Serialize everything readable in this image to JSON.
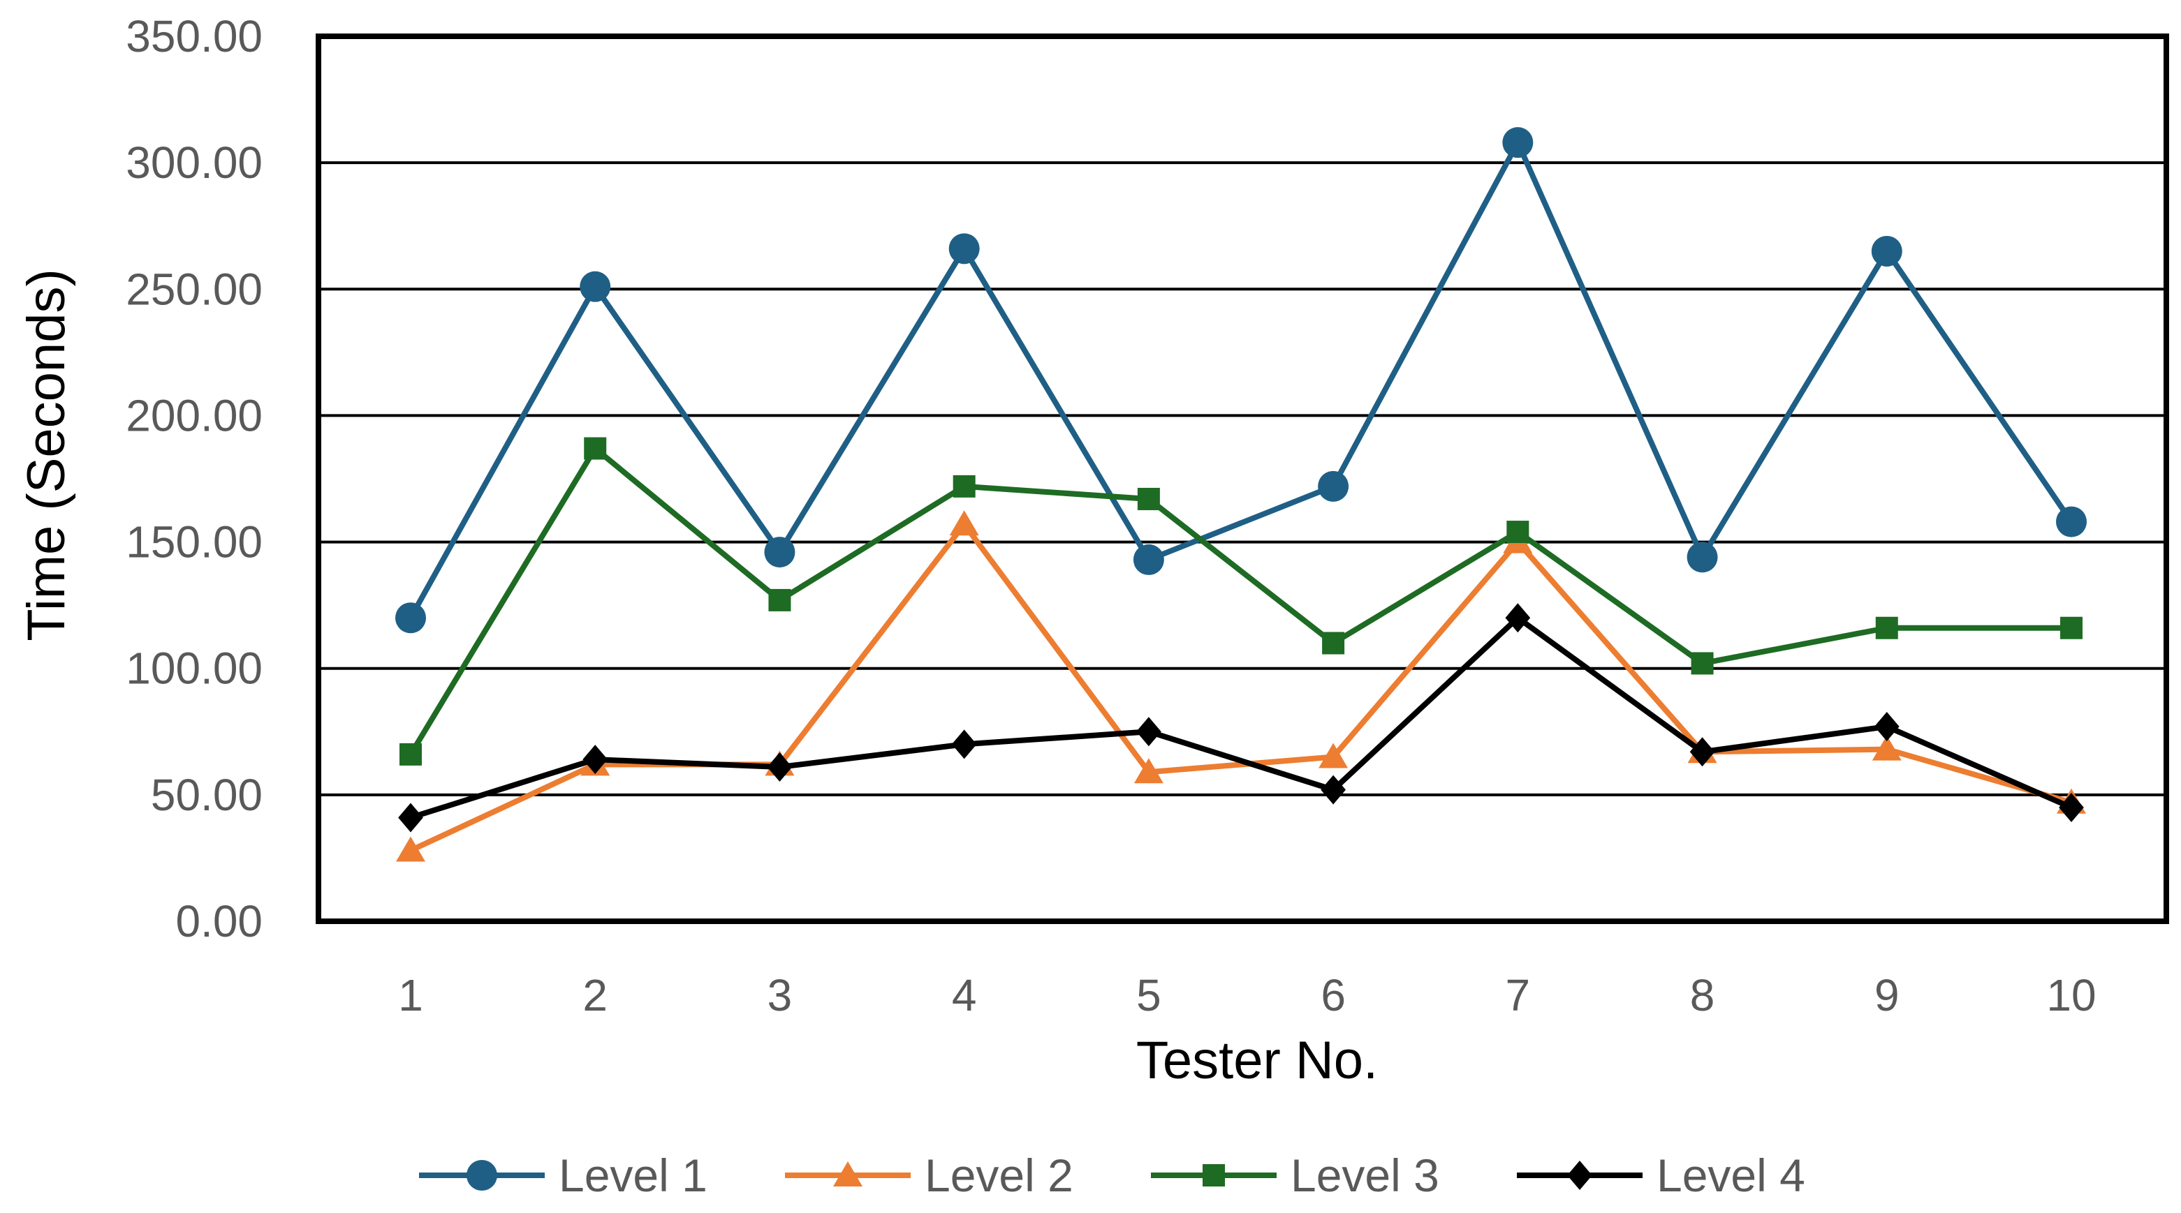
{
  "chart_data": {
    "type": "line",
    "title": "",
    "xlabel": "Tester No.",
    "ylabel": "Time (Seconds)",
    "categories": [
      "1",
      "2",
      "3",
      "4",
      "5",
      "6",
      "7",
      "8",
      "9",
      "10"
    ],
    "ylim": [
      0,
      350
    ],
    "yticks": [
      "0.00",
      "50.00",
      "100.00",
      "150.00",
      "200.00",
      "250.00",
      "300.00",
      "350.00"
    ],
    "grid": true,
    "legend_position": "bottom",
    "series": [
      {
        "name": "Level 1",
        "color": "#1f5f86",
        "marker": "circle",
        "values": [
          120,
          251,
          146,
          266,
          143,
          172,
          308,
          144,
          265,
          158
        ]
      },
      {
        "name": "Level 2",
        "color": "#ed7d31",
        "marker": "triangle",
        "values": [
          28,
          62,
          62,
          157,
          59,
          65,
          150,
          67,
          68,
          47
        ]
      },
      {
        "name": "Level 3",
        "color": "#1e6b24",
        "marker": "square",
        "values": [
          66,
          187,
          127,
          172,
          167,
          110,
          154,
          102,
          116,
          116
        ]
      },
      {
        "name": "Level 4",
        "color": "#000000",
        "marker": "diamond",
        "values": [
          41,
          64,
          61,
          70,
          75,
          52,
          120,
          67,
          77,
          45
        ]
      }
    ]
  }
}
